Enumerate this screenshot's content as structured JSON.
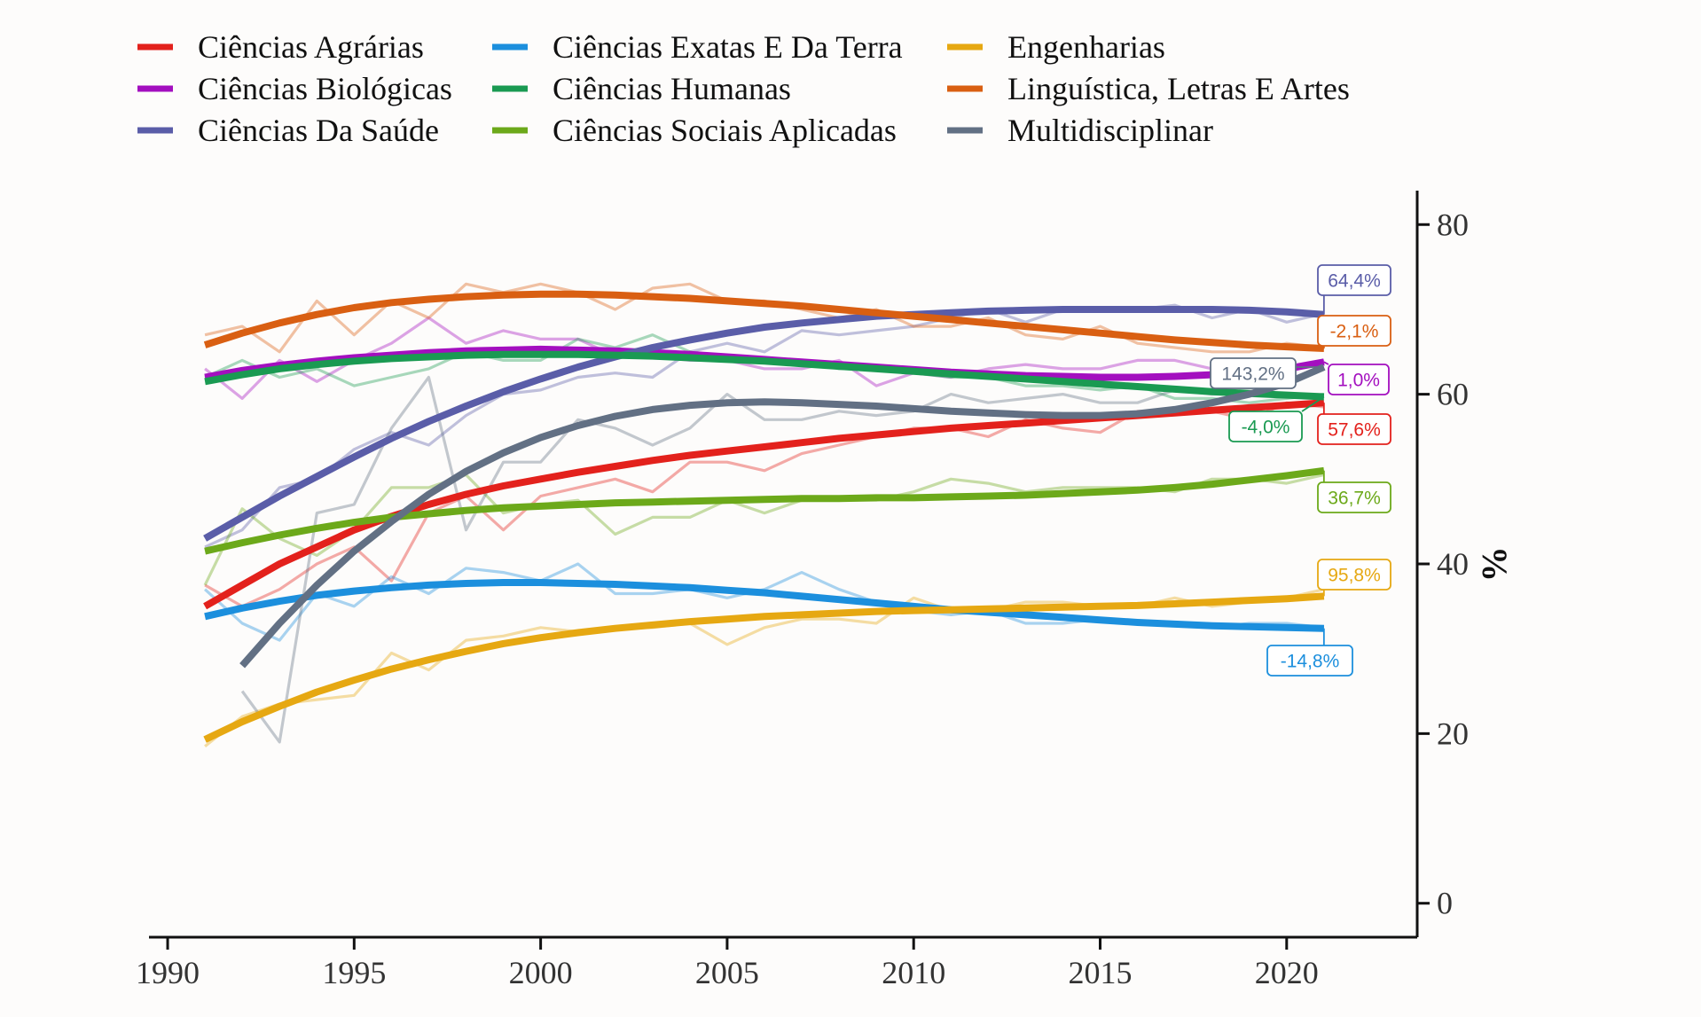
{
  "chart_data": {
    "type": "line",
    "title": "",
    "xlabel": "",
    "ylabel": "%",
    "xlim": [
      1989.5,
      2023.5
    ],
    "ylim": [
      -4,
      84
    ],
    "xticks": [
      1990,
      1995,
      2000,
      2005,
      2010,
      2015,
      2020
    ],
    "yticks": [
      0,
      20,
      40,
      60,
      80
    ],
    "y_axis_side": "right",
    "grid": false,
    "legend": "top",
    "series": [
      {
        "name": "Ciências Agrárias",
        "color": "#e3211c",
        "x": [
          1991,
          1992,
          1993,
          1994,
          1995,
          1996,
          1997,
          1998,
          1999,
          2000,
          2001,
          2002,
          2003,
          2004,
          2005,
          2006,
          2007,
          2008,
          2009,
          2010,
          2011,
          2012,
          2013,
          2014,
          2015,
          2016,
          2017,
          2018,
          2019,
          2020,
          2021
        ],
        "raw": [
          37.5,
          35,
          37,
          40,
          42,
          38,
          46,
          48,
          44,
          48,
          49,
          50,
          48.5,
          52,
          52,
          51,
          53,
          54,
          55,
          56,
          56,
          55,
          57,
          56,
          55.5,
          58,
          58,
          58,
          57,
          59,
          58.5
        ],
        "trend": [
          35,
          37.5,
          40,
          42,
          44,
          45.6,
          47,
          48.2,
          49.2,
          50,
          50.8,
          51.5,
          52.2,
          52.8,
          53.3,
          53.8,
          54.3,
          54.8,
          55.2,
          55.6,
          56,
          56.3,
          56.6,
          56.9,
          57.2,
          57.5,
          57.8,
          58.1,
          58.4,
          58.7,
          59
        ],
        "end_label": "57,6%"
      },
      {
        "name": "Ciências Biológicas",
        "color": "#a30fbf",
        "x": [
          1991,
          1992,
          1993,
          1994,
          1995,
          1996,
          1997,
          1998,
          1999,
          2000,
          2001,
          2002,
          2003,
          2004,
          2005,
          2006,
          2007,
          2008,
          2009,
          2010,
          2011,
          2012,
          2013,
          2014,
          2015,
          2016,
          2017,
          2018,
          2019,
          2020,
          2021
        ],
        "raw": [
          63,
          59.5,
          64,
          61.5,
          64,
          66,
          69,
          66,
          67.5,
          66.5,
          66.5,
          64.5,
          64.5,
          64,
          64,
          63,
          63,
          64,
          61,
          62.5,
          62,
          63,
          63.5,
          63,
          63,
          64,
          64,
          63,
          63,
          62.5,
          64
        ],
        "trend": [
          62,
          62.8,
          63.4,
          63.9,
          64.3,
          64.6,
          64.9,
          65.1,
          65.2,
          65.3,
          65.2,
          65.1,
          64.9,
          64.7,
          64.4,
          64.1,
          63.8,
          63.5,
          63.2,
          62.9,
          62.6,
          62.4,
          62.2,
          62.1,
          62,
          62,
          62.1,
          62.3,
          62.6,
          63,
          63.8
        ],
        "end_label": "1,0%"
      },
      {
        "name": "Ciências Da Saúde",
        "color": "#5a5da8",
        "x": [
          1991,
          1992,
          1993,
          1994,
          1995,
          1996,
          1997,
          1998,
          1999,
          2000,
          2001,
          2002,
          2003,
          2004,
          2005,
          2006,
          2007,
          2008,
          2009,
          2010,
          2011,
          2012,
          2013,
          2014,
          2015,
          2016,
          2017,
          2018,
          2019,
          2020,
          2021
        ],
        "raw": [
          42,
          44,
          49,
          50,
          53.5,
          55.5,
          54,
          57.5,
          60,
          60.5,
          62,
          62.5,
          62,
          65,
          66,
          65,
          67.5,
          67,
          67.5,
          68,
          69,
          70,
          68.5,
          70,
          70,
          70,
          70.5,
          69,
          70,
          68.5,
          69.5
        ],
        "trend": [
          43,
          45.5,
          48,
          50.3,
          52.6,
          54.8,
          56.8,
          58.6,
          60.3,
          61.8,
          63.2,
          64.4,
          65.5,
          66.4,
          67.2,
          67.9,
          68.4,
          68.8,
          69.2,
          69.4,
          69.6,
          69.8,
          69.9,
          70,
          70,
          70,
          70,
          70,
          69.9,
          69.7,
          69.4
        ],
        "end_label": "64,4%"
      },
      {
        "name": "Ciências Exatas E Da Terra",
        "color": "#1c8fdd",
        "x": [
          1991,
          1992,
          1993,
          1994,
          1995,
          1996,
          1997,
          1998,
          1999,
          2000,
          2001,
          2002,
          2003,
          2004,
          2005,
          2006,
          2007,
          2008,
          2009,
          2010,
          2011,
          2012,
          2013,
          2014,
          2015,
          2016,
          2017,
          2018,
          2019,
          2020,
          2021
        ],
        "raw": [
          37,
          33,
          31,
          36.5,
          35,
          38.5,
          36.5,
          39.5,
          39,
          38,
          40,
          36.5,
          36.5,
          37,
          36,
          37,
          39,
          37,
          35.5,
          34.5,
          34,
          34.5,
          33,
          33,
          33.5,
          33,
          33,
          32.5,
          33,
          33,
          32.5
        ],
        "trend": [
          33.8,
          34.8,
          35.6,
          36.3,
          36.8,
          37.2,
          37.5,
          37.7,
          37.8,
          37.8,
          37.7,
          37.6,
          37.4,
          37.2,
          36.9,
          36.6,
          36.2,
          35.8,
          35.4,
          35,
          34.6,
          34.3,
          34,
          33.7,
          33.4,
          33.1,
          32.9,
          32.7,
          32.6,
          32.5,
          32.4
        ],
        "end_label": "-14,8%"
      },
      {
        "name": "Ciências Humanas",
        "color": "#1a9a52",
        "x": [
          1991,
          1992,
          1993,
          1994,
          1995,
          1996,
          1997,
          1998,
          1999,
          2000,
          2001,
          2002,
          2003,
          2004,
          2005,
          2006,
          2007,
          2008,
          2009,
          2010,
          2011,
          2012,
          2013,
          2014,
          2015,
          2016,
          2017,
          2018,
          2019,
          2020,
          2021
        ],
        "raw": [
          62,
          64,
          62,
          63,
          61,
          62,
          63,
          65,
          64,
          64,
          66.5,
          65.5,
          67,
          65,
          64,
          64,
          64,
          63,
          63,
          62.5,
          62,
          62,
          61,
          61,
          60.5,
          61,
          59.5,
          59.5,
          59,
          59.5,
          60
        ],
        "trend": [
          61.5,
          62.3,
          63,
          63.5,
          63.9,
          64.2,
          64.4,
          64.6,
          64.7,
          64.7,
          64.7,
          64.6,
          64.5,
          64.3,
          64.1,
          63.9,
          63.6,
          63.3,
          63,
          62.7,
          62.4,
          62.1,
          61.8,
          61.5,
          61.2,
          60.9,
          60.6,
          60.3,
          60.1,
          59.9,
          59.7
        ],
        "end_label": "-4,0%"
      },
      {
        "name": "Ciências Sociais Aplicadas",
        "color": "#6ca91a",
        "x": [
          1991,
          1992,
          1993,
          1994,
          1995,
          1996,
          1997,
          1998,
          1999,
          2000,
          2001,
          2002,
          2003,
          2004,
          2005,
          2006,
          2007,
          2008,
          2009,
          2010,
          2011,
          2012,
          2013,
          2014,
          2015,
          2016,
          2017,
          2018,
          2019,
          2020,
          2021
        ],
        "raw": [
          37.5,
          46.5,
          43,
          41,
          44,
          49,
          49,
          50.5,
          46,
          47,
          47.5,
          43.5,
          45.5,
          45.5,
          47.5,
          46,
          47.5,
          47.5,
          47.5,
          48.5,
          50,
          49.5,
          48.5,
          49,
          49,
          49,
          48.5,
          50,
          50,
          49.5,
          50.5
        ],
        "trend": [
          41.5,
          42.5,
          43.4,
          44.2,
          44.9,
          45.5,
          45.9,
          46.3,
          46.6,
          46.8,
          47,
          47.2,
          47.3,
          47.4,
          47.5,
          47.6,
          47.7,
          47.7,
          47.8,
          47.8,
          47.9,
          48,
          48.1,
          48.3,
          48.5,
          48.7,
          49,
          49.4,
          49.9,
          50.4,
          51
        ],
        "end_label": "36,7%"
      },
      {
        "name": "Engenharias",
        "color": "#e6a812",
        "x": [
          1991,
          1992,
          1993,
          1994,
          1995,
          1996,
          1997,
          1998,
          1999,
          2000,
          2001,
          2002,
          2003,
          2004,
          2005,
          2006,
          2007,
          2008,
          2009,
          2010,
          2011,
          2012,
          2013,
          2014,
          2015,
          2016,
          2017,
          2018,
          2019,
          2020,
          2021
        ],
        "raw": [
          18.5,
          22,
          23.5,
          24,
          24.5,
          29.5,
          27.5,
          31,
          31.5,
          32.5,
          32,
          32.5,
          32.5,
          33,
          30.5,
          32.5,
          33.5,
          33.5,
          33,
          36,
          34.5,
          34.5,
          35.5,
          35.5,
          35,
          35,
          36,
          35,
          35.5,
          36,
          37
        ],
        "trend": [
          19.3,
          21.4,
          23.2,
          24.9,
          26.3,
          27.6,
          28.7,
          29.7,
          30.6,
          31.3,
          31.9,
          32.4,
          32.8,
          33.2,
          33.5,
          33.8,
          34,
          34.2,
          34.4,
          34.5,
          34.6,
          34.7,
          34.8,
          34.9,
          35,
          35.1,
          35.3,
          35.5,
          35.7,
          35.9,
          36.2
        ],
        "end_label": "95,8%"
      },
      {
        "name": "Linguística, Letras E Artes",
        "color": "#d95f12",
        "x": [
          1991,
          1992,
          1993,
          1994,
          1995,
          1996,
          1997,
          1998,
          1999,
          2000,
          2001,
          2002,
          2003,
          2004,
          2005,
          2006,
          2007,
          2008,
          2009,
          2010,
          2011,
          2012,
          2013,
          2014,
          2015,
          2016,
          2017,
          2018,
          2019,
          2020,
          2021
        ],
        "raw": [
          67,
          68,
          65,
          71,
          67,
          71,
          69,
          73,
          72,
          73,
          72,
          70,
          72.5,
          73,
          71,
          71,
          70,
          69,
          70,
          68,
          68,
          69,
          67,
          66.5,
          68,
          66,
          65.5,
          65,
          65,
          66,
          65.5
        ],
        "trend": [
          65.8,
          67.2,
          68.4,
          69.4,
          70.2,
          70.8,
          71.2,
          71.5,
          71.7,
          71.8,
          71.8,
          71.7,
          71.5,
          71.3,
          71,
          70.7,
          70.4,
          70,
          69.6,
          69.2,
          68.8,
          68.4,
          68,
          67.6,
          67.2,
          66.8,
          66.4,
          66.1,
          65.8,
          65.6,
          65.4
        ],
        "end_label": "-2,1%"
      },
      {
        "name": "Multidisciplinar",
        "color": "#627084",
        "x": [
          1992,
          1993,
          1994,
          1995,
          1996,
          1997,
          1998,
          1999,
          2000,
          2001,
          2002,
          2003,
          2004,
          2005,
          2006,
          2007,
          2008,
          2009,
          2010,
          2011,
          2012,
          2013,
          2014,
          2015,
          2016,
          2017,
          2018,
          2019,
          2020,
          2021
        ],
        "raw": [
          25,
          19,
          46,
          47,
          56,
          62,
          44,
          52,
          52,
          57,
          56,
          54,
          56,
          60,
          57,
          57,
          58,
          57.5,
          58,
          60,
          59,
          59.5,
          60,
          59,
          59,
          60.5,
          60,
          60,
          61,
          63
        ],
        "trend": [
          28,
          33,
          37.5,
          41.5,
          45,
          48.2,
          50.9,
          53.1,
          54.9,
          56.3,
          57.4,
          58.2,
          58.7,
          59,
          59.1,
          59,
          58.8,
          58.6,
          58.3,
          58,
          57.8,
          57.6,
          57.5,
          57.5,
          57.7,
          58.2,
          59,
          60,
          61.3,
          63.2
        ],
        "end_label": "143,2%"
      }
    ]
  }
}
